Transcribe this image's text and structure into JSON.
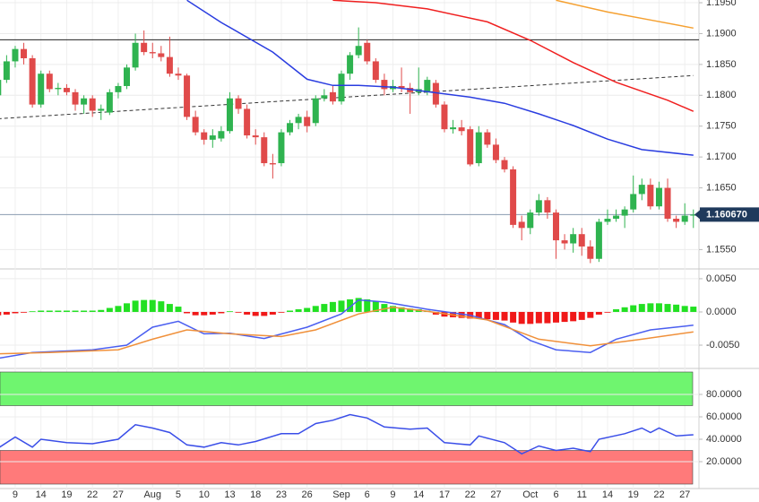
{
  "chart_data": [
    {
      "type": "candlestick",
      "categories": [
        null,
        null,
        "9",
        null,
        null,
        "14",
        null,
        null,
        "19",
        null,
        null,
        "22",
        null,
        null,
        "27",
        null,
        null,
        null,
        "Aug",
        null,
        null,
        "5",
        null,
        null,
        "10",
        null,
        null,
        "13",
        null,
        null,
        "18",
        null,
        null,
        "23",
        null,
        null,
        "26",
        null,
        null,
        null,
        "Sep",
        null,
        null,
        "6",
        null,
        null,
        "9",
        null,
        null,
        "14",
        null,
        null,
        "17",
        null,
        null,
        "22",
        null,
        null,
        "27",
        null,
        null,
        null,
        "Oct",
        null,
        null,
        "6",
        null,
        null,
        "11",
        null,
        null,
        "14",
        null,
        null,
        "19",
        null,
        null,
        "22",
        null,
        null,
        "27",
        null
      ],
      "candles": [
        [
          1.18,
          1.183,
          1.1795,
          1.1825
        ],
        [
          1.1825,
          1.1865,
          1.182,
          1.1855
        ],
        [
          1.1855,
          1.188,
          1.1845,
          1.1875
        ],
        [
          1.1875,
          1.1885,
          1.185,
          1.186
        ],
        [
          1.186,
          1.1865,
          1.178,
          1.1785
        ],
        [
          1.1785,
          1.184,
          1.178,
          1.1835
        ],
        [
          1.1835,
          1.184,
          1.1805,
          1.181
        ],
        [
          1.181,
          1.182,
          1.18,
          1.1812
        ],
        [
          1.1812,
          1.1818,
          1.18,
          1.1805
        ],
        [
          1.1805,
          1.181,
          1.1775,
          1.1785
        ],
        [
          1.1785,
          1.18,
          1.177,
          1.1795
        ],
        [
          1.1795,
          1.18,
          1.1765,
          1.1775
        ],
        [
          1.1775,
          1.1785,
          1.176,
          1.1778
        ],
        [
          1.1772,
          1.181,
          1.1768,
          1.1805
        ],
        [
          1.1805,
          1.182,
          1.1795,
          1.1815
        ],
        [
          1.1815,
          1.185,
          1.181,
          1.1845
        ],
        [
          1.1845,
          1.19,
          1.184,
          1.1885
        ],
        [
          1.1885,
          1.1905,
          1.1865,
          1.187
        ],
        [
          1.187,
          1.1885,
          1.186,
          1.1868
        ],
        [
          1.1868,
          1.188,
          1.1855,
          1.1862
        ],
        [
          1.1862,
          1.1895,
          1.183,
          1.1835
        ],
        [
          1.1835,
          1.1845,
          1.1825,
          1.1832
        ],
        [
          1.1832,
          1.1835,
          1.176,
          1.1765
        ],
        [
          1.1765,
          1.1775,
          1.1735,
          1.174
        ],
        [
          1.174,
          1.1745,
          1.172,
          1.1728
        ],
        [
          1.1728,
          1.1745,
          1.1715,
          1.1735
        ],
        [
          1.173,
          1.175,
          1.1725,
          1.1742
        ],
        [
          1.1742,
          1.1805,
          1.1738,
          1.1795
        ],
        [
          1.1795,
          1.18,
          1.177,
          1.1778
        ],
        [
          1.1778,
          1.1785,
          1.173,
          1.1735
        ],
        [
          1.1735,
          1.1745,
          1.172,
          1.1732
        ],
        [
          1.1732,
          1.174,
          1.1685,
          1.169
        ],
        [
          1.169,
          1.1705,
          1.1665,
          1.1688
        ],
        [
          1.169,
          1.1745,
          1.1685,
          1.174
        ],
        [
          1.174,
          1.176,
          1.1735,
          1.1755
        ],
        [
          1.1755,
          1.177,
          1.1745,
          1.1765
        ],
        [
          1.1765,
          1.1775,
          1.174,
          1.175
        ],
        [
          1.1755,
          1.18,
          1.175,
          1.1795
        ],
        [
          1.1795,
          1.181,
          1.179,
          1.18
        ],
        [
          1.1805,
          1.1815,
          1.1785,
          1.179
        ],
        [
          1.179,
          1.184,
          1.1785,
          1.1835
        ],
        [
          1.1835,
          1.187,
          1.1825,
          1.1865
        ],
        [
          1.1865,
          1.191,
          1.186,
          1.188
        ],
        [
          1.1885,
          1.189,
          1.185,
          1.1855
        ],
        [
          1.1855,
          1.186,
          1.182,
          1.1825
        ],
        [
          1.1825,
          1.1835,
          1.18,
          1.181
        ],
        [
          1.181,
          1.1825,
          1.1805,
          1.1815
        ],
        [
          1.1815,
          1.1845,
          1.1805,
          1.1812
        ],
        [
          1.1812,
          1.182,
          1.177,
          1.1805
        ],
        [
          1.1805,
          1.1845,
          1.18,
          1.181
        ],
        [
          1.1805,
          1.183,
          1.18,
          1.1825
        ],
        [
          1.182,
          1.1825,
          1.178,
          1.1785
        ],
        [
          1.1785,
          1.179,
          1.174,
          1.1745
        ],
        [
          1.1745,
          1.176,
          1.1738,
          1.1748
        ],
        [
          1.1748,
          1.176,
          1.1735,
          1.1742
        ],
        [
          1.1745,
          1.175,
          1.1685,
          1.1688
        ],
        [
          1.169,
          1.175,
          1.1685,
          1.174
        ],
        [
          1.174,
          1.1745,
          1.1715,
          1.172
        ],
        [
          1.172,
          1.173,
          1.169,
          1.1695
        ],
        [
          1.1695,
          1.17,
          1.1675,
          1.168
        ],
        [
          1.168,
          1.1685,
          1.1585,
          1.159
        ],
        [
          1.1595,
          1.1605,
          1.1565,
          1.1585
        ],
        [
          1.1585,
          1.1615,
          1.1575,
          1.161
        ],
        [
          1.161,
          1.164,
          1.1605,
          1.163
        ],
        [
          1.163,
          1.1635,
          1.16,
          1.161
        ],
        [
          1.161,
          1.1615,
          1.1535,
          1.1565
        ],
        [
          1.1565,
          1.1575,
          1.155,
          1.156
        ],
        [
          1.156,
          1.1585,
          1.1545,
          1.1575
        ],
        [
          1.1575,
          1.1585,
          1.154,
          1.1555
        ],
        [
          1.1555,
          1.1565,
          1.1528,
          1.1535
        ],
        [
          1.1535,
          1.16,
          1.153,
          1.1595
        ],
        [
          1.1595,
          1.1615,
          1.159,
          1.16
        ],
        [
          1.16,
          1.1615,
          1.1595,
          1.1605
        ],
        [
          1.1605,
          1.162,
          1.1585,
          1.1615
        ],
        [
          1.1615,
          1.167,
          1.161,
          1.164
        ],
        [
          1.164,
          1.1665,
          1.163,
          1.1655
        ],
        [
          1.1655,
          1.1665,
          1.1615,
          1.162
        ],
        [
          1.162,
          1.166,
          1.1615,
          1.165
        ],
        [
          1.165,
          1.1665,
          1.1595,
          1.16
        ],
        [
          1.16,
          1.1605,
          1.1585,
          1.1595
        ],
        [
          1.1595,
          1.1625,
          1.159,
          1.1605
        ],
        [
          1.1605,
          1.1615,
          1.1585,
          1.16067
        ]
      ],
      "colors": {
        "up": "#2fb350",
        "down": "#e04a4a"
      },
      "ylim": [
        1.1523,
        1.19544
      ],
      "yticks": [
        {
          "value": 1.155,
          "label": "1.1550"
        },
        {
          "value": 1.165,
          "label": "1.1650"
        },
        {
          "value": 1.17,
          "label": "1.1700"
        },
        {
          "value": 1.175,
          "label": "1.1750"
        },
        {
          "value": 1.18,
          "label": "1.1800"
        },
        {
          "value": 1.185,
          "label": "1.1850"
        },
        {
          "value": 1.19,
          "label": "1.1900"
        },
        {
          "value": 1.195,
          "label": "1.1950"
        }
      ],
      "grid": true,
      "moving_averages": [
        {
          "color": "#2a3de0",
          "x": [
            22,
            26,
            32,
            36,
            39,
            42,
            46,
            50,
            55,
            59,
            63,
            67,
            71,
            75,
            81
          ],
          "values": [
            1.1954,
            1.1918,
            1.187,
            1.1826,
            1.1816,
            1.1816,
            1.1813,
            1.1806,
            1.1797,
            1.1787,
            1.177,
            1.1751,
            1.1729,
            1.1712,
            1.1703
          ]
        },
        {
          "color": "#f02020",
          "x": [
            39,
            44,
            50,
            57,
            62,
            67,
            72,
            78,
            81
          ],
          "values": [
            1.1954,
            1.195,
            1.194,
            1.1919,
            1.1889,
            1.1853,
            1.1821,
            1.1792,
            1.1774
          ]
        },
        {
          "color": "#f5a030",
          "x": [
            65,
            71,
            76,
            81
          ],
          "values": [
            1.1954,
            1.1935,
            1.1922,
            1.1909
          ]
        }
      ],
      "trendline": {
        "color": "#333333",
        "x": [
          0,
          81
        ],
        "values": [
          1.1762,
          1.1832
        ]
      },
      "level": {
        "color": "#222222",
        "value": 1.189
      },
      "last_price": {
        "value": 1.16067,
        "label": "1.160670",
        "color": "#1f3a5c"
      }
    },
    {
      "type": "macd",
      "values": [
        -0.0005,
        -0.0004,
        -0.0002,
        -0.0001,
        0.0001,
        0.0002,
        0.0002,
        0.0002,
        0.0002,
        0.0002,
        0.0002,
        0.0002,
        0.0003,
        0.0006,
        0.0009,
        0.0013,
        0.0017,
        0.0018,
        0.0018,
        0.0016,
        0.0012,
        0.0008,
        -0.0002,
        -0.0005,
        -0.0005,
        -0.0004,
        -0.0002,
        0.0001,
        -0.0001,
        -0.0004,
        -0.0006,
        -0.0006,
        -0.0004,
        -0.0001,
        0.0002,
        0.0004,
        0.0006,
        0.0009,
        0.0012,
        0.0015,
        0.0017,
        0.0019,
        0.0021,
        0.0019,
        0.0016,
        0.0012,
        0.0009,
        0.0007,
        0.0005,
        0.0004,
        0.0002,
        -0.0004,
        -0.0007,
        -0.0008,
        -0.0009,
        -0.001,
        -0.001,
        -0.0011,
        -0.0012,
        -0.0013,
        -0.0016,
        -0.0018,
        -0.0018,
        -0.0017,
        -0.0017,
        -0.0016,
        -0.0015,
        -0.0014,
        -0.0012,
        -0.0009,
        -0.0004,
        -0.0001,
        0.0004,
        0.0007,
        0.001,
        0.0012,
        0.0013,
        0.0013,
        0.0012,
        0.0011,
        0.0009,
        0.0008
      ],
      "colors": {
        "up": "#22e022",
        "down": "#f01818"
      },
      "lines": [
        {
          "color": "#4a5ef0",
          "x": [
            0,
            4,
            11,
            15,
            18,
            21,
            24,
            27,
            31,
            36,
            40,
            42,
            45,
            50,
            55,
            59,
            62,
            65,
            69,
            72,
            76,
            81
          ],
          "values": [
            -0.007,
            -0.0061,
            -0.0057,
            -0.005,
            -0.0023,
            -0.0014,
            -0.0033,
            -0.0032,
            -0.004,
            -0.0023,
            -0.0003,
            0.0018,
            0.0015,
            0.0004,
            -0.0005,
            -0.0019,
            -0.0043,
            -0.0057,
            -0.0061,
            -0.0041,
            -0.0027,
            -0.002
          ]
        },
        {
          "color": "#f0903a",
          "x": [
            0,
            6,
            14,
            18,
            22,
            27,
            33,
            37,
            42,
            46,
            50,
            57,
            63,
            69,
            75,
            81
          ],
          "values": [
            -0.0063,
            -0.0061,
            -0.0057,
            -0.0041,
            -0.0027,
            -0.0033,
            -0.0037,
            -0.0027,
            -0.0003,
            0.0007,
            0.0001,
            -0.0012,
            -0.0041,
            -0.0051,
            -0.0041,
            -0.003
          ]
        }
      ],
      "ylim": [
        -0.0081,
        0.0058
      ],
      "yticks": [
        {
          "value": 0.005,
          "label": "0.0050"
        },
        {
          "value": 0,
          "label": "0.0000"
        },
        {
          "value": -0.005,
          "label": "-0.0050"
        }
      ]
    },
    {
      "type": "oscillator",
      "x": [
        0,
        2,
        4,
        5,
        8,
        11,
        14,
        16,
        18,
        20,
        22,
        24,
        26,
        28,
        30,
        33,
        35,
        37,
        39,
        41,
        43,
        45,
        48,
        50,
        52,
        55,
        56,
        59,
        61,
        63,
        65,
        67,
        69,
        70,
        73,
        75,
        76,
        77,
        79,
        81
      ],
      "values": [
        32,
        42,
        33,
        40,
        37,
        36,
        40,
        53,
        50,
        46,
        35,
        33,
        37,
        35,
        38,
        45,
        45,
        54,
        57,
        62,
        59,
        51,
        49,
        50,
        37,
        35,
        43,
        37,
        27,
        34,
        30,
        32,
        29,
        40,
        45,
        50,
        46,
        50,
        43,
        44
      ],
      "color": "#3a4ee8",
      "bands": [
        {
          "range": [
            70,
            100
          ],
          "color": "#6ff56f"
        },
        {
          "range": [
            0,
            30
          ],
          "color": "#ff7a7a"
        }
      ],
      "ylim": [
        0,
        100
      ],
      "yticks": [
        {
          "value": 20,
          "label": "20.0000"
        },
        {
          "value": 40,
          "label": "40.0000"
        },
        {
          "value": 60,
          "label": "60.0000"
        },
        {
          "value": 80,
          "label": "80.0000"
        }
      ]
    }
  ]
}
